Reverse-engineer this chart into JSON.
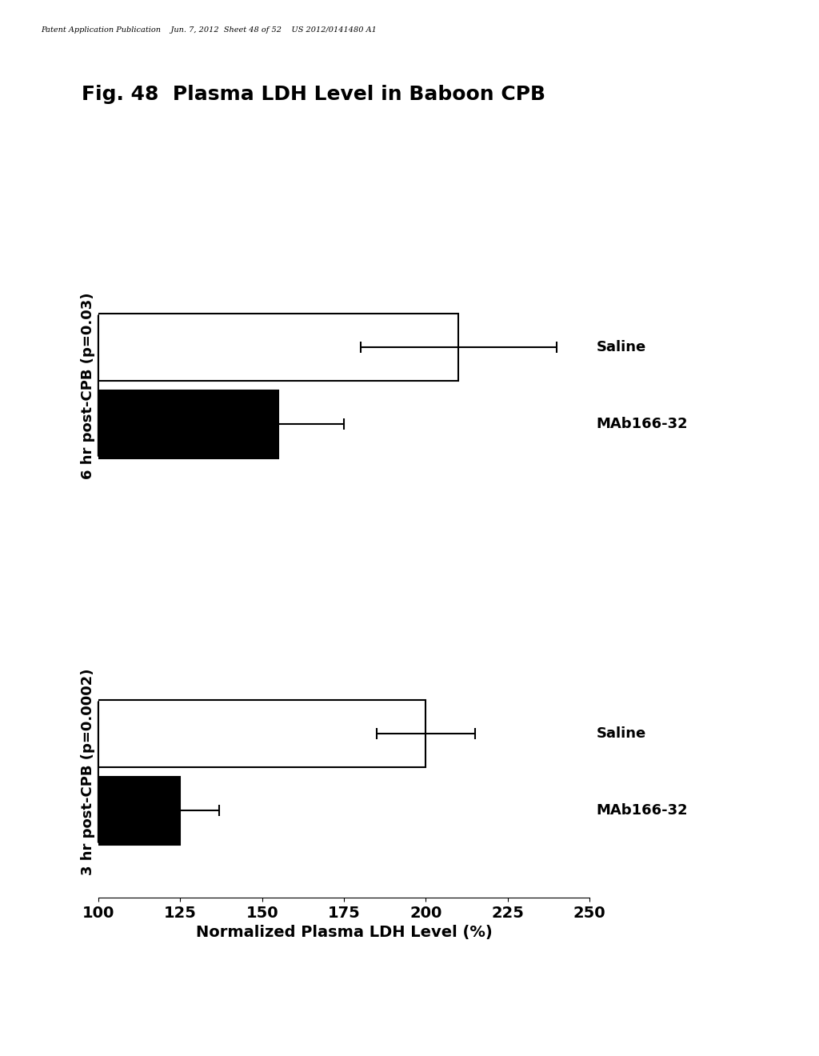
{
  "title": "Fig. 48  Plasma LDH Level in Baboon CPB",
  "ylabel": "Normalized Plasma LDH Level (%)",
  "xlim": [
    100,
    250
  ],
  "xticks": [
    100,
    125,
    150,
    175,
    200,
    225,
    250
  ],
  "bars": [
    {
      "label": "Saline",
      "group": "3 hr post-CPB (p=0.0002)",
      "value": 200,
      "error": 15,
      "color": "#ffffff",
      "edgecolor": "#000000"
    },
    {
      "label": "MAb166-32",
      "group": "3 hr post-CPB (p=0.0002)",
      "value": 125,
      "error": 12,
      "color": "#000000",
      "edgecolor": "#000000"
    },
    {
      "label": "Saline",
      "group": "6 hr post-CPB (p=0.03)",
      "value": 210,
      "error": 30,
      "color": "#ffffff",
      "edgecolor": "#000000"
    },
    {
      "label": "MAb166-32",
      "group": "6 hr post-CPB (p=0.03)",
      "value": 155,
      "error": 20,
      "color": "#000000",
      "edgecolor": "#000000"
    }
  ],
  "group1_label": "3 hr post-CPB (p=0.0002)",
  "group2_label": "6 hr post-CPB (p=0.03)",
  "header_text": "Patent Application Publication    Jun. 7, 2012  Sheet 48 of 52    US 2012/0141480 A1",
  "bar_height": 0.35,
  "background_color": "#ffffff",
  "tick_label_fontsize": 14,
  "axis_label_fontsize": 14,
  "title_fontsize": 18,
  "group_label_fontsize": 13,
  "bar_label_fontsize": 13
}
